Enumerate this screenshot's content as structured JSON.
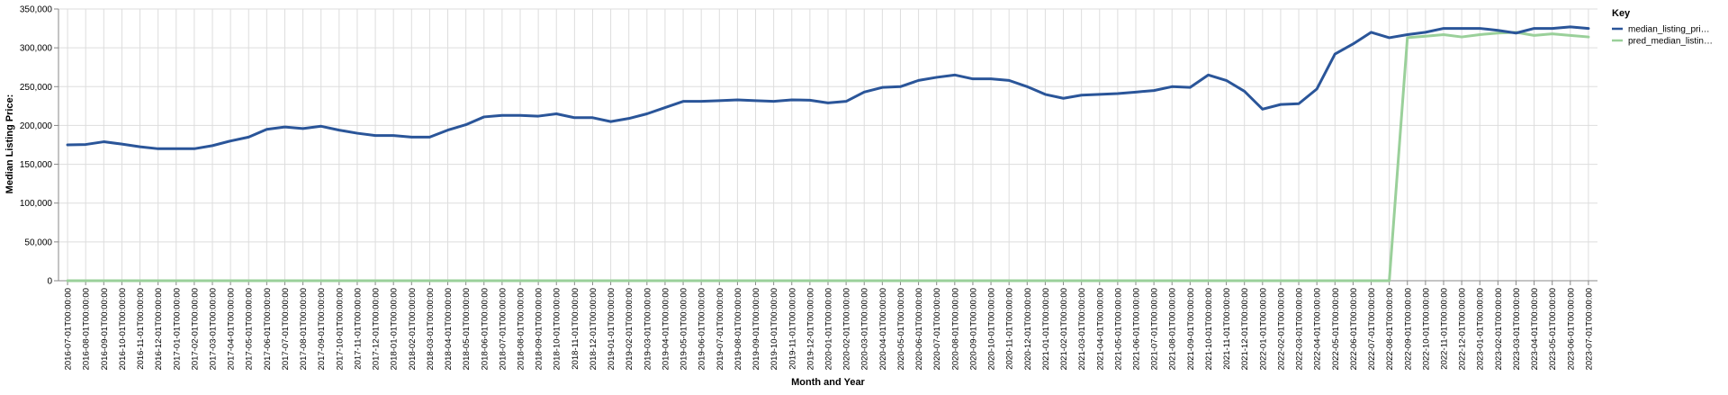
{
  "chart_data": {
    "type": "line",
    "title": "",
    "xlabel": "Month and Year",
    "ylabel": "Median Listing Price:",
    "ylim": [
      0,
      350000
    ],
    "yticks": [
      "0",
      "50,000",
      "100,000",
      "150,000",
      "200,000",
      "250,000",
      "300,000",
      "350,000"
    ],
    "grid": true,
    "legend": {
      "title": "Key",
      "placement": "top-right",
      "entries": [
        "median_listing_pri…",
        "pred_median_listin…"
      ]
    },
    "x": [
      "2016-07-01T00:00:00",
      "2016-08-01T00:00:00",
      "2016-09-01T00:00:00",
      "2016-10-01T00:00:00",
      "2016-11-01T00:00:00",
      "2016-12-01T00:00:00",
      "2017-01-01T00:00:00",
      "2017-02-01T00:00:00",
      "2017-03-01T00:00:00",
      "2017-04-01T00:00:00",
      "2017-05-01T00:00:00",
      "2017-06-01T00:00:00",
      "2017-07-01T00:00:00",
      "2017-08-01T00:00:00",
      "2017-09-01T00:00:00",
      "2017-10-01T00:00:00",
      "2017-11-01T00:00:00",
      "2017-12-01T00:00:00",
      "2018-01-01T00:00:00",
      "2018-02-01T00:00:00",
      "2018-03-01T00:00:00",
      "2018-04-01T00:00:00",
      "2018-05-01T00:00:00",
      "2018-06-01T00:00:00",
      "2018-07-01T00:00:00",
      "2018-08-01T00:00:00",
      "2018-09-01T00:00:00",
      "2018-10-01T00:00:00",
      "2018-11-01T00:00:00",
      "2018-12-01T00:00:00",
      "2019-01-01T00:00:00",
      "2019-02-01T00:00:00",
      "2019-03-01T00:00:00",
      "2019-04-01T00:00:00",
      "2019-05-01T00:00:00",
      "2019-06-01T00:00:00",
      "2019-07-01T00:00:00",
      "2019-08-01T00:00:00",
      "2019-09-01T00:00:00",
      "2019-10-01T00:00:00",
      "2019-11-01T00:00:00",
      "2019-12-01T00:00:00",
      "2020-01-01T00:00:00",
      "2020-02-01T00:00:00",
      "2020-03-01T00:00:00",
      "2020-04-01T00:00:00",
      "2020-05-01T00:00:00",
      "2020-06-01T00:00:00",
      "2020-07-01T00:00:00",
      "2020-08-01T00:00:00",
      "2020-09-01T00:00:00",
      "2020-10-01T00:00:00",
      "2020-11-01T00:00:00",
      "2020-12-01T00:00:00",
      "2021-01-01T00:00:00",
      "2021-02-01T00:00:00",
      "2021-03-01T00:00:00",
      "2021-04-01T00:00:00",
      "2021-05-01T00:00:00",
      "2021-06-01T00:00:00",
      "2021-07-01T00:00:00",
      "2021-08-01T00:00:00",
      "2021-09-01T00:00:00",
      "2021-10-01T00:00:00",
      "2021-11-01T00:00:00",
      "2021-12-01T00:00:00",
      "2022-01-01T00:00:00",
      "2022-02-01T00:00:00",
      "2022-03-01T00:00:00",
      "2022-04-01T00:00:00",
      "2022-05-01T00:00:00",
      "2022-06-01T00:00:00",
      "2022-07-01T00:00:00",
      "2022-08-01T00:00:00",
      "2022-09-01T00:00:00",
      "2022-10-01T00:00:00",
      "2022-11-01T00:00:00",
      "2022-12-01T00:00:00",
      "2023-01-01T00:00:00",
      "2023-02-01T00:00:00",
      "2023-03-01T00:00:00",
      "2023-04-01T00:00:00",
      "2023-05-01T00:00:00",
      "2023-06-01T00:00:00",
      "2023-07-01T00:00:00"
    ],
    "series": [
      {
        "name": "median_listing_pri…",
        "color": "#2a5599",
        "values": [
          175000,
          175500,
          179000,
          176000,
          172500,
          170000,
          170000,
          170000,
          174000,
          180000,
          185000,
          195000,
          198000,
          196000,
          199000,
          194000,
          190000,
          187000,
          187000,
          185000,
          185000,
          194000,
          201000,
          211000,
          213000,
          213000,
          212000,
          215000,
          210000,
          210000,
          205000,
          209000,
          215000,
          223000,
          231000,
          231000,
          232000,
          233000,
          232000,
          231000,
          233000,
          232500,
          229000,
          231000,
          243000,
          249000,
          250000,
          258000,
          262000,
          265000,
          260000,
          260000,
          258000,
          250000,
          240000,
          235000,
          239000,
          240000,
          241000,
          243000,
          245000,
          250000,
          249000,
          265000,
          258000,
          244000,
          221000,
          227000,
          228000,
          247000,
          292000,
          305000,
          320000,
          313000,
          317000,
          320000,
          325000,
          325000,
          325000,
          322500,
          319000,
          325000,
          325000,
          327000,
          325000
        ]
      },
      {
        "name": "pred_median_listin…",
        "color": "#9ad09a",
        "values": [
          0,
          0,
          0,
          0,
          0,
          0,
          0,
          0,
          0,
          0,
          0,
          0,
          0,
          0,
          0,
          0,
          0,
          0,
          0,
          0,
          0,
          0,
          0,
          0,
          0,
          0,
          0,
          0,
          0,
          0,
          0,
          0,
          0,
          0,
          0,
          0,
          0,
          0,
          0,
          0,
          0,
          0,
          0,
          0,
          0,
          0,
          0,
          0,
          0,
          0,
          0,
          0,
          0,
          0,
          0,
          0,
          0,
          0,
          0,
          0,
          0,
          0,
          0,
          0,
          0,
          0,
          0,
          0,
          0,
          0,
          0,
          0,
          0,
          0,
          313000,
          315000,
          317000,
          314000,
          317000,
          319000,
          320000,
          316000,
          318000,
          316000,
          314000
        ]
      }
    ]
  }
}
